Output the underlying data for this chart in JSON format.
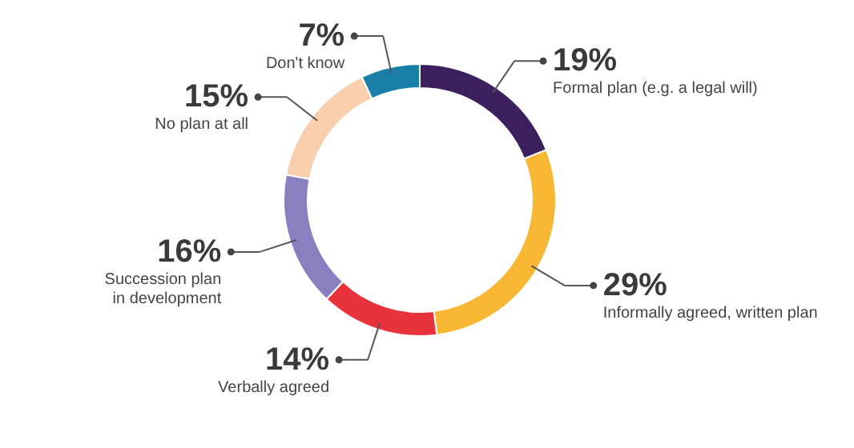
{
  "chart_data": {
    "type": "donut",
    "categories": [
      "Formal plan (e.g. a legal will)",
      "Informally agreed, written plan",
      "Verbally agreed",
      "Succession plan\nin development",
      "No plan at all",
      "Don't know"
    ],
    "values": [
      19,
      29,
      14,
      16,
      15,
      7
    ],
    "colors": [
      "#3b1f5e",
      "#f7b733",
      "#e8323c",
      "#8a80c0",
      "#f9cfae",
      "#1a7fa8"
    ],
    "value_labels": [
      "19%",
      "29%",
      "14%",
      "16%",
      "15%",
      "7%"
    ]
  }
}
